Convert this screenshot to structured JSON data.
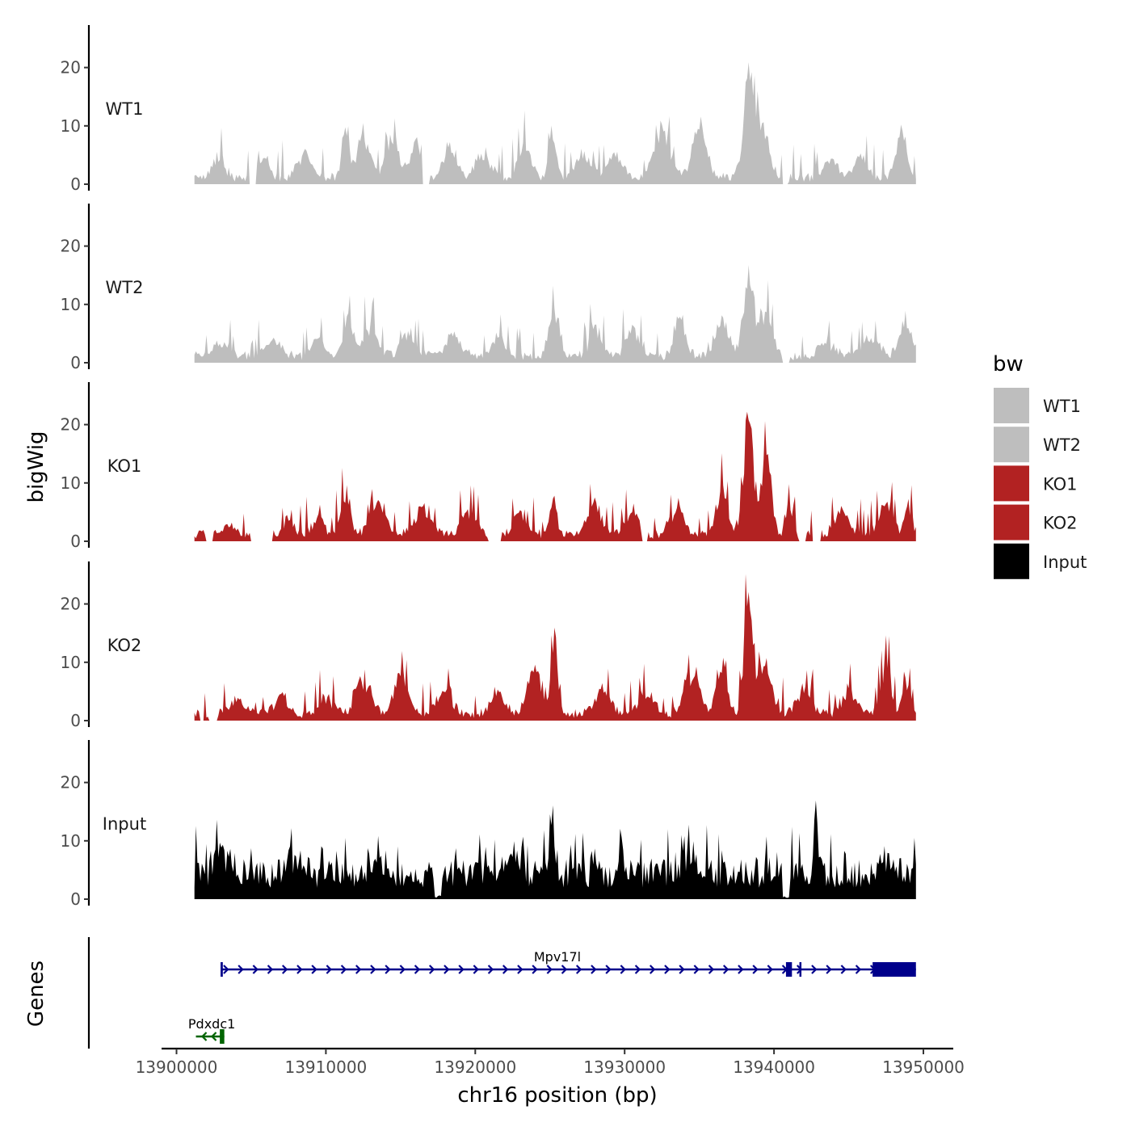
{
  "chart_data": {
    "type": "area",
    "chromosome": "chr16",
    "xlabel": "chr16 position (bp)",
    "ylabel": "bigWig",
    "genes_label": "Genes",
    "xlim": [
      13899000,
      13952000
    ],
    "x_ticks": [
      13900000,
      13910000,
      13920000,
      13930000,
      13940000,
      13950000
    ],
    "x_tick_labels": [
      "13900000",
      "13910000",
      "13920000",
      "13930000",
      "13940000",
      "13950000"
    ],
    "ylim": [
      0,
      27
    ],
    "y_ticks": [
      0,
      10,
      20
    ],
    "y_tick_labels": [
      "0",
      "10",
      "20"
    ],
    "legend": {
      "title": "bw",
      "entries": [
        {
          "label": "WT1",
          "color": "#bebebe"
        },
        {
          "label": "WT2",
          "color": "#bebebe"
        },
        {
          "label": "KO1",
          "color": "#b22222"
        },
        {
          "label": "KO2",
          "color": "#b22222"
        },
        {
          "label": "Input",
          "color": "#000000"
        }
      ]
    },
    "tracks": [
      {
        "name": "WT1",
        "color": "#bebebe",
        "x_start": 13901200,
        "x_end": 13949500,
        "gaps": [
          [
            13904900,
            13905300
          ],
          [
            13916500,
            13916900
          ],
          [
            13940600,
            13940900
          ]
        ],
        "peaks": [
          {
            "x": 13902800,
            "y": 3.5,
            "w": 800
          },
          {
            "x": 13905800,
            "y": 4,
            "w": 700
          },
          {
            "x": 13908500,
            "y": 4,
            "w": 900
          },
          {
            "x": 13911300,
            "y": 9,
            "w": 450
          },
          {
            "x": 13912500,
            "y": 6,
            "w": 900
          },
          {
            "x": 13914500,
            "y": 6.5,
            "w": 900
          },
          {
            "x": 13916000,
            "y": 6,
            "w": 700
          },
          {
            "x": 13918300,
            "y": 5,
            "w": 800
          },
          {
            "x": 13920500,
            "y": 3.5,
            "w": 1000
          },
          {
            "x": 13923300,
            "y": 5,
            "w": 800
          },
          {
            "x": 13925200,
            "y": 8,
            "w": 500
          },
          {
            "x": 13927200,
            "y": 4,
            "w": 900
          },
          {
            "x": 13929300,
            "y": 3.5,
            "w": 1000
          },
          {
            "x": 13932500,
            "y": 8,
            "w": 1100
          },
          {
            "x": 13935000,
            "y": 8,
            "w": 900
          },
          {
            "x": 13938300,
            "y": 16,
            "w": 700
          },
          {
            "x": 13939200,
            "y": 9,
            "w": 900
          },
          {
            "x": 13943800,
            "y": 3,
            "w": 900
          },
          {
            "x": 13945800,
            "y": 3.5,
            "w": 900
          },
          {
            "x": 13948500,
            "y": 7.5,
            "w": 700
          }
        ]
      },
      {
        "name": "WT2",
        "color": "#bebebe",
        "x_start": 13901200,
        "x_end": 13949500,
        "gaps": [
          [
            13940600,
            13941000
          ]
        ],
        "peaks": [
          {
            "x": 13903000,
            "y": 2,
            "w": 1200
          },
          {
            "x": 13906500,
            "y": 2.5,
            "w": 1000
          },
          {
            "x": 13909500,
            "y": 3,
            "w": 800
          },
          {
            "x": 13911500,
            "y": 7,
            "w": 600
          },
          {
            "x": 13913000,
            "y": 5,
            "w": 900
          },
          {
            "x": 13915500,
            "y": 4,
            "w": 900
          },
          {
            "x": 13918500,
            "y": 3.5,
            "w": 1000
          },
          {
            "x": 13921500,
            "y": 3,
            "w": 1000
          },
          {
            "x": 13925300,
            "y": 7,
            "w": 700
          },
          {
            "x": 13928000,
            "y": 5,
            "w": 700
          },
          {
            "x": 13930500,
            "y": 4,
            "w": 900
          },
          {
            "x": 13933700,
            "y": 7,
            "w": 700
          },
          {
            "x": 13936500,
            "y": 6,
            "w": 900
          },
          {
            "x": 13938300,
            "y": 13,
            "w": 700
          },
          {
            "x": 13939500,
            "y": 7,
            "w": 800
          },
          {
            "x": 13943500,
            "y": 2.5,
            "w": 1000
          },
          {
            "x": 13946500,
            "y": 3,
            "w": 1000
          },
          {
            "x": 13948800,
            "y": 6,
            "w": 800
          }
        ]
      },
      {
        "name": "KO1",
        "color": "#b22222",
        "x_start": 13901200,
        "x_end": 13949500,
        "gaps": [
          [
            13902000,
            13902400
          ],
          [
            13905000,
            13906400
          ],
          [
            13920900,
            13921700
          ],
          [
            13931200,
            13931500
          ],
          [
            13941700,
            13942100
          ],
          [
            13942600,
            13943100
          ]
        ],
        "peaks": [
          {
            "x": 13903500,
            "y": 1.5,
            "w": 900
          },
          {
            "x": 13907500,
            "y": 3,
            "w": 600
          },
          {
            "x": 13909500,
            "y": 3,
            "w": 700
          },
          {
            "x": 13911300,
            "y": 8,
            "w": 550
          },
          {
            "x": 13913500,
            "y": 5,
            "w": 1000
          },
          {
            "x": 13916500,
            "y": 5,
            "w": 1100
          },
          {
            "x": 13919500,
            "y": 4,
            "w": 900
          },
          {
            "x": 13923000,
            "y": 4,
            "w": 900
          },
          {
            "x": 13925200,
            "y": 6,
            "w": 500
          },
          {
            "x": 13928000,
            "y": 5,
            "w": 900
          },
          {
            "x": 13930500,
            "y": 5,
            "w": 700
          },
          {
            "x": 13933500,
            "y": 4.5,
            "w": 900
          },
          {
            "x": 13936500,
            "y": 7,
            "w": 800
          },
          {
            "x": 13938300,
            "y": 18,
            "w": 700
          },
          {
            "x": 13939500,
            "y": 13,
            "w": 600
          },
          {
            "x": 13941000,
            "y": 5,
            "w": 400
          },
          {
            "x": 13944500,
            "y": 4,
            "w": 900
          },
          {
            "x": 13947500,
            "y": 5.5,
            "w": 900
          },
          {
            "x": 13949000,
            "y": 5,
            "w": 500
          }
        ]
      },
      {
        "name": "KO2",
        "color": "#b22222",
        "x_start": 13901200,
        "x_end": 13949500,
        "gaps": [
          [
            13901600,
            13901800
          ],
          [
            13902200,
            13902700
          ]
        ],
        "peaks": [
          {
            "x": 13904000,
            "y": 2.5,
            "w": 1000
          },
          {
            "x": 13907000,
            "y": 3,
            "w": 900
          },
          {
            "x": 13910000,
            "y": 3,
            "w": 900
          },
          {
            "x": 13912500,
            "y": 6,
            "w": 1000
          },
          {
            "x": 13915000,
            "y": 7,
            "w": 900
          },
          {
            "x": 13918000,
            "y": 4,
            "w": 1000
          },
          {
            "x": 13921500,
            "y": 3.5,
            "w": 900
          },
          {
            "x": 13924000,
            "y": 8,
            "w": 900
          },
          {
            "x": 13925300,
            "y": 12,
            "w": 450
          },
          {
            "x": 13928500,
            "y": 4,
            "w": 1000
          },
          {
            "x": 13931500,
            "y": 4,
            "w": 900
          },
          {
            "x": 13934500,
            "y": 7,
            "w": 1000
          },
          {
            "x": 13936500,
            "y": 9,
            "w": 700
          },
          {
            "x": 13938300,
            "y": 23,
            "w": 550
          },
          {
            "x": 13939400,
            "y": 9,
            "w": 800
          },
          {
            "x": 13942000,
            "y": 4,
            "w": 900
          },
          {
            "x": 13945000,
            "y": 4,
            "w": 900
          },
          {
            "x": 13947500,
            "y": 9,
            "w": 600
          },
          {
            "x": 13948800,
            "y": 6,
            "w": 500
          }
        ]
      },
      {
        "name": "Input",
        "color": "#000000",
        "x_start": 13901200,
        "x_end": 13949500,
        "gaps": [],
        "base": 5.5,
        "dips": [
          {
            "x": 13917500,
            "w": 250
          },
          {
            "x": 13940800,
            "w": 250
          }
        ],
        "peaks": [
          {
            "x": 13903000,
            "y": 4,
            "w": 700
          },
          {
            "x": 13908000,
            "y": 3,
            "w": 900
          },
          {
            "x": 13913500,
            "y": 3.5,
            "w": 800
          },
          {
            "x": 13922500,
            "y": 3,
            "w": 900
          },
          {
            "x": 13925200,
            "y": 7,
            "w": 300
          },
          {
            "x": 13928000,
            "y": 5,
            "w": 300
          },
          {
            "x": 13934500,
            "y": 3,
            "w": 900
          },
          {
            "x": 13942800,
            "y": 10,
            "w": 300
          },
          {
            "x": 13947500,
            "y": 2.5,
            "w": 900
          }
        ]
      }
    ],
    "genes": [
      {
        "name": "Mpv17l",
        "color": "#00008b",
        "strand": "+",
        "start": 13903000,
        "end": 13949500,
        "exons": [
          [
            13902950,
            13903100
          ],
          [
            13940800,
            13941200
          ],
          [
            13941700,
            13941800
          ],
          [
            13946600,
            13949500
          ]
        ],
        "row": 1
      },
      {
        "name": "Pdxdc1",
        "color": "#006400",
        "strand": "-",
        "start": 13901300,
        "end": 13903200,
        "exons": [
          [
            13902900,
            13903200
          ]
        ],
        "row": 2
      }
    ]
  }
}
